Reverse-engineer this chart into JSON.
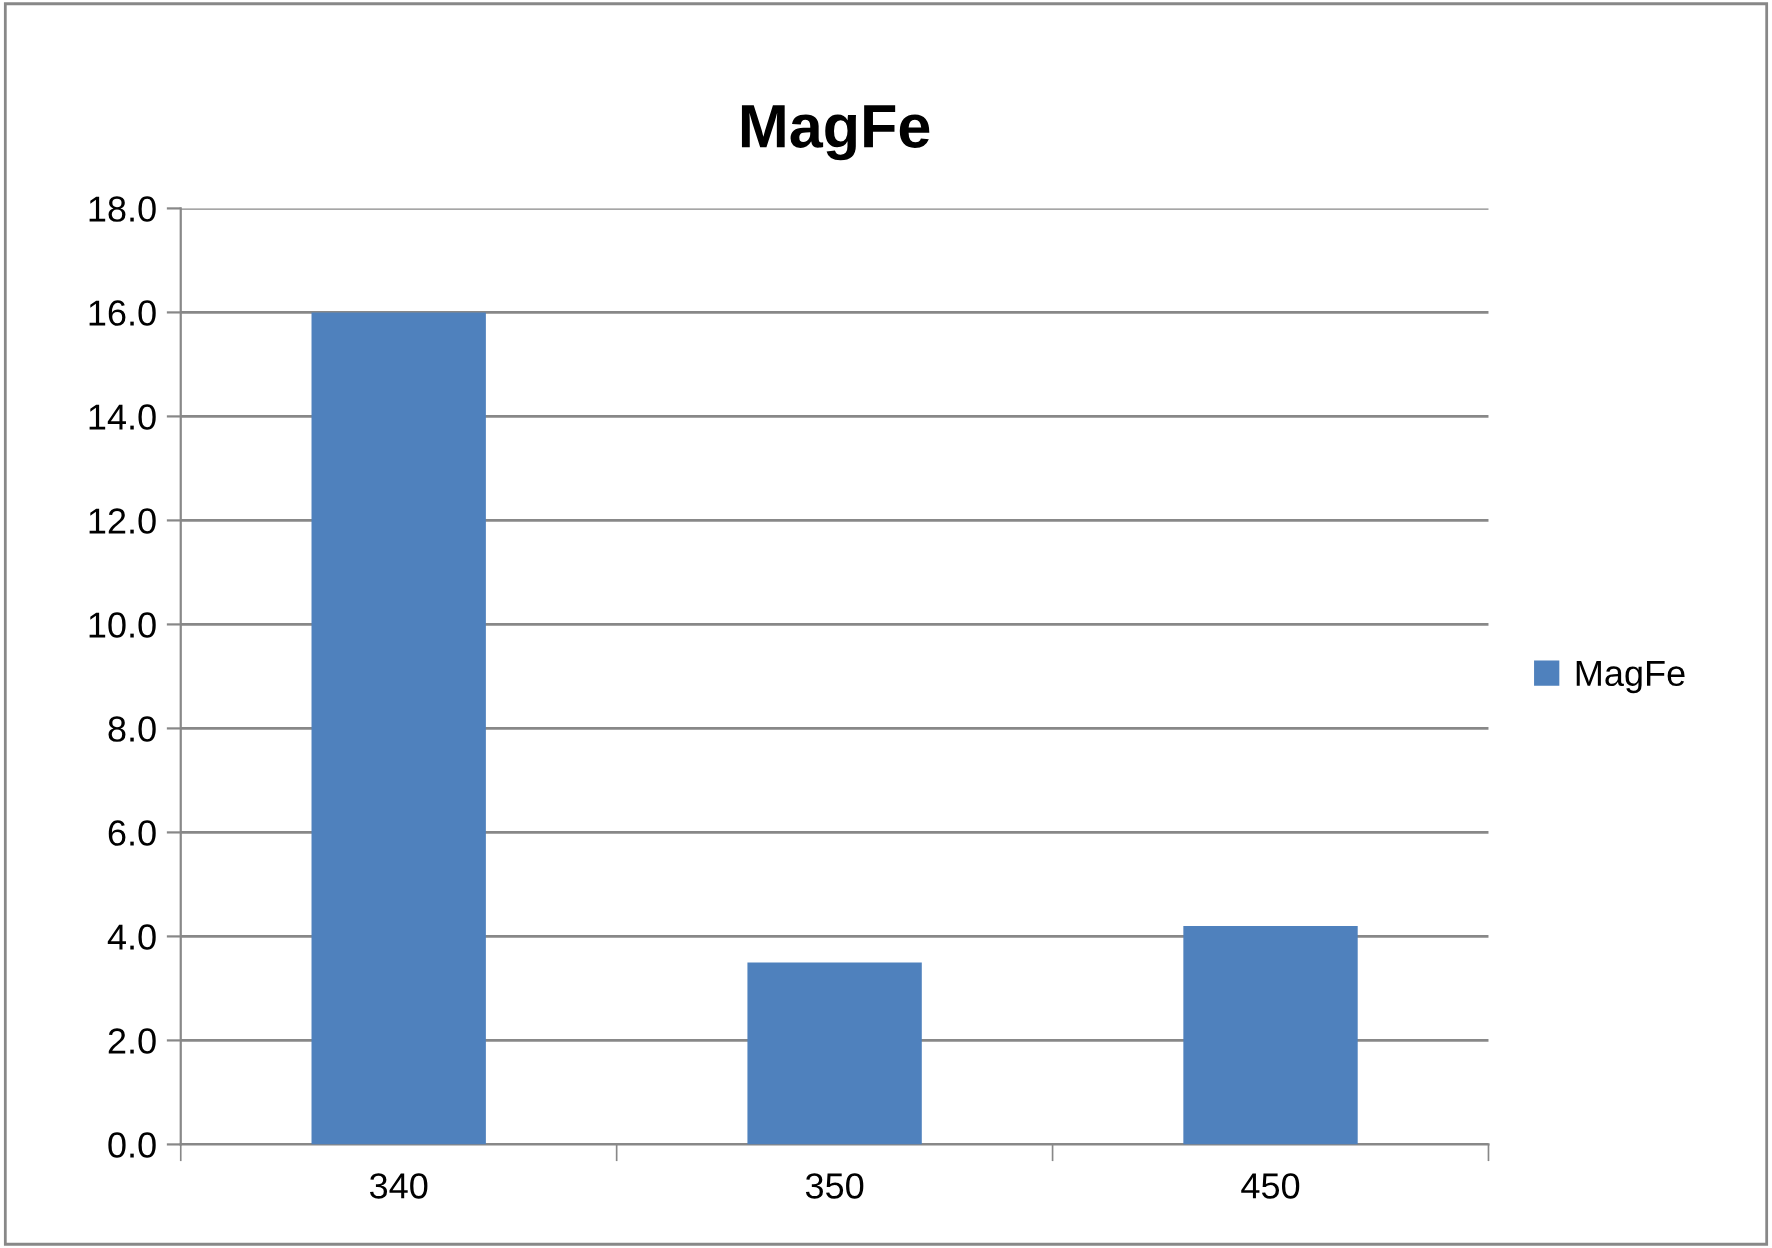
{
  "chart_data": {
    "type": "bar",
    "title": "MagFe",
    "categories": [
      "340",
      "350",
      "450"
    ],
    "series": [
      {
        "name": "MagFe",
        "color": "#4f81bd",
        "values": [
          16.0,
          3.5,
          4.2
        ]
      }
    ],
    "ylim": [
      0,
      18
    ],
    "yticks": [
      {
        "value": 0,
        "label": "0.0"
      },
      {
        "value": 2,
        "label": "2.0"
      },
      {
        "value": 4,
        "label": "4.0"
      },
      {
        "value": 6,
        "label": "6.0"
      },
      {
        "value": 8,
        "label": "8.0"
      },
      {
        "value": 10,
        "label": "10.0"
      },
      {
        "value": 12,
        "label": "12.0"
      },
      {
        "value": 14,
        "label": "14.0"
      },
      {
        "value": 16,
        "label": "16.0"
      },
      {
        "value": 18,
        "label": "18.0"
      }
    ],
    "grid": "y",
    "legend": "right"
  }
}
